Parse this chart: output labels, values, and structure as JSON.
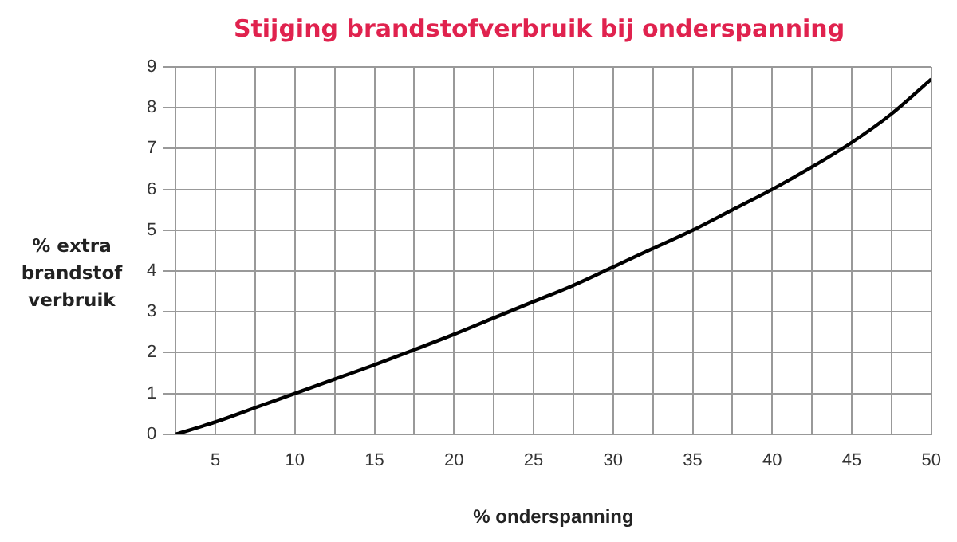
{
  "chart_data": {
    "type": "line",
    "title": "Stijging brandstofverbruik bij onderspanning",
    "xlabel": "% onderspanning",
    "ylabel": "% extra brandstof verbruik",
    "x": [
      2.5,
      5,
      7.5,
      10,
      12.5,
      15,
      17.5,
      20,
      22.5,
      25,
      27.5,
      30,
      32.5,
      35,
      37.5,
      40,
      42.5,
      45,
      47.5,
      50
    ],
    "series": [
      {
        "color": "#000000",
        "values": [
          0,
          0.3,
          0.65,
          1.0,
          1.35,
          1.7,
          2.07,
          2.45,
          2.85,
          3.25,
          3.65,
          4.1,
          4.55,
          5.0,
          5.5,
          6.0,
          6.55,
          7.15,
          7.85,
          8.7
        ]
      }
    ],
    "xlim": [
      2.5,
      50
    ],
    "xticks": [
      {
        "value": 2.5,
        "label": null
      },
      5,
      {
        "value": 7.5,
        "label": null
      },
      10,
      {
        "value": 12.5,
        "label": null
      },
      15,
      {
        "value": 17.5,
        "label": null
      },
      20,
      {
        "value": 22.5,
        "label": null
      },
      25,
      {
        "value": 27.5,
        "label": null
      },
      30,
      {
        "value": 32.5,
        "label": null
      },
      35,
      {
        "value": 37.5,
        "label": null
      },
      40,
      {
        "value": 42.5,
        "label": null
      },
      45,
      {
        "value": 47.5,
        "label": null
      },
      50
    ],
    "ylim": [
      0,
      9
    ],
    "yticks": [
      0,
      1,
      2,
      3,
      4,
      5,
      6,
      7,
      8,
      9
    ],
    "grid": true,
    "legend": false,
    "marker": "none",
    "line_style": "solid"
  }
}
